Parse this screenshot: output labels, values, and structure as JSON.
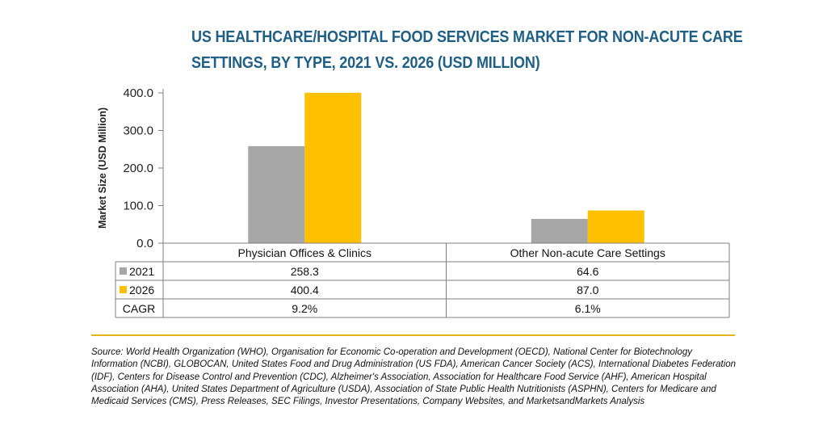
{
  "chart_data": {
    "type": "bar",
    "title": "US HEALTHCARE/HOSPITAL FOOD SERVICES MARKET FOR NON-ACUTE CARE SETTINGS, BY TYPE, 2021 VS. 2026 (USD MILLION)",
    "title_lines": [
      "US HEALTHCARE/HOSPITAL FOOD SERVICES MARKET FOR NON-ACUTE CARE",
      "SETTINGS, BY TYPE, 2021 VS. 2026 (USD MILLION)"
    ],
    "xlabel": "",
    "ylabel": "Market Size (USD Million)",
    "ylim": [
      0,
      400
    ],
    "yticks": [
      "0.0",
      "100.0",
      "200.0",
      "300.0",
      "400.0"
    ],
    "ytick_values": [
      0,
      100,
      200,
      300,
      400
    ],
    "grid": false,
    "categories": [
      "Physician Offices & Clinics",
      "Other Non-acute Care Settings"
    ],
    "series": [
      {
        "name": "2021",
        "values": [
          258.3,
          64.6
        ],
        "labels": [
          "258.3",
          "64.6"
        ],
        "color": "#a6a6a6"
      },
      {
        "name": "2026",
        "values": [
          400.4,
          87.0
        ],
        "labels": [
          "400.4",
          "87.0"
        ],
        "color": "#ffc000"
      }
    ],
    "data_table": {
      "extra_row_label": "CAGR",
      "extra_row_values": [
        "9.2%",
        "6.1%"
      ]
    }
  },
  "source_note": "Source: World Health Organization (WHO), Organisation for Economic Co-operation and Development (OECD), National Center for Biotechnology Information (NCBI), GLOBOCAN, United States Food and Drug Administration (US FDA), American Cancer Society (ACS), International Diabetes Federation (IDF), Centers for Disease Control and Prevention (CDC), Alzheimer's Association, Association for Healthcare Food Service (AHF), American Hospital Association (AHA), United States Department of Agriculture (USDA), Association of State Public Health Nutritionists (ASPHN), Centers for Medicare and Medicaid Services (CMS), Press Releases, SEC Filings, Investor Presentations, Company Websites, and MarketsandMarkets Analysis",
  "colors": {
    "title": "#1f5f86",
    "divider": "#e5b41c",
    "axis": "#7f7f7f"
  }
}
